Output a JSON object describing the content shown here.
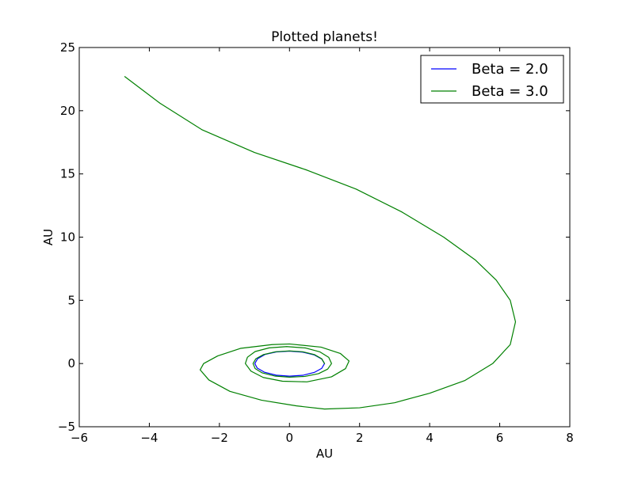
{
  "chart_data": {
    "type": "line",
    "title": "Plotted planets!",
    "xlabel": "AU",
    "ylabel": "AU",
    "xlim": [
      -6,
      8
    ],
    "ylim": [
      -5,
      25
    ],
    "x_ticks": [
      -6,
      -4,
      -2,
      0,
      2,
      4,
      6,
      8
    ],
    "x_tick_labels": [
      "−6",
      "−4",
      "−2",
      "0",
      "2",
      "4",
      "6",
      "8"
    ],
    "y_ticks": [
      -5,
      0,
      5,
      10,
      15,
      20,
      25
    ],
    "y_tick_labels": [
      "−5",
      "0",
      "5",
      "10",
      "15",
      "20",
      "25"
    ],
    "grid": false,
    "legend_position": "top-right",
    "series": [
      {
        "name": "Beta = 2.0",
        "color": "#0000ff",
        "points": [
          [
            1.0,
            0.0
          ],
          [
            0.92,
            0.36
          ],
          [
            0.71,
            0.68
          ],
          [
            0.38,
            0.9
          ],
          [
            0.0,
            0.98
          ],
          [
            -0.38,
            0.92
          ],
          [
            -0.7,
            0.72
          ],
          [
            -0.91,
            0.38
          ],
          [
            -0.99,
            0.0
          ],
          [
            -0.92,
            -0.36
          ],
          [
            -0.72,
            -0.68
          ],
          [
            -0.38,
            -0.92
          ],
          [
            0.0,
            -1.0
          ],
          [
            0.38,
            -0.93
          ],
          [
            0.71,
            -0.7
          ],
          [
            0.92,
            -0.38
          ],
          [
            1.0,
            0.0
          ]
        ]
      },
      {
        "name": "Beta = 3.0",
        "color": "#008000",
        "points": [
          [
            1.0,
            0.0
          ],
          [
            0.92,
            0.38
          ],
          [
            0.71,
            0.71
          ],
          [
            0.38,
            0.93
          ],
          [
            0.0,
            1.0
          ],
          [
            -0.4,
            0.93
          ],
          [
            -0.74,
            0.71
          ],
          [
            -0.96,
            0.38
          ],
          [
            -1.04,
            0.0
          ],
          [
            -0.98,
            -0.4
          ],
          [
            -0.78,
            -0.74
          ],
          [
            -0.42,
            -0.99
          ],
          [
            0.0,
            -1.08
          ],
          [
            0.44,
            -1.02
          ],
          [
            0.83,
            -0.8
          ],
          [
            1.09,
            -0.44
          ],
          [
            1.2,
            0.0
          ],
          [
            1.12,
            0.49
          ],
          [
            0.87,
            0.92
          ],
          [
            0.46,
            1.23
          ],
          [
            -0.08,
            1.34
          ],
          [
            -0.58,
            1.24
          ],
          [
            -0.98,
            0.95
          ],
          [
            -1.2,
            0.5
          ],
          [
            -1.26,
            0.0
          ],
          [
            -1.1,
            -0.6
          ],
          [
            -0.75,
            -1.1
          ],
          [
            -0.2,
            -1.4
          ],
          [
            0.5,
            -1.45
          ],
          [
            1.2,
            -1.05
          ],
          [
            1.6,
            -0.4
          ],
          [
            1.7,
            0.2
          ],
          [
            1.45,
            0.8
          ],
          [
            0.9,
            1.3
          ],
          [
            0.0,
            1.55
          ],
          [
            -0.5,
            1.5
          ],
          [
            -1.4,
            1.2
          ],
          [
            -2.05,
            0.6
          ],
          [
            -2.45,
            0.0
          ],
          [
            -2.55,
            -0.5
          ],
          [
            -2.3,
            -1.3
          ],
          [
            -1.7,
            -2.2
          ],
          [
            -0.8,
            -2.9
          ],
          [
            0.2,
            -3.35
          ],
          [
            1.0,
            -3.6
          ],
          [
            2.0,
            -3.5
          ],
          [
            3.0,
            -3.1
          ],
          [
            4.0,
            -2.35
          ],
          [
            5.0,
            -1.35
          ],
          [
            5.8,
            0.0
          ],
          [
            6.3,
            1.5
          ],
          [
            6.45,
            3.3
          ],
          [
            6.3,
            5.0
          ],
          [
            5.9,
            6.6
          ],
          [
            5.3,
            8.2
          ],
          [
            4.4,
            10.0
          ],
          [
            3.2,
            12.0
          ],
          [
            1.9,
            13.8
          ],
          [
            0.5,
            15.3
          ],
          [
            -1.0,
            16.7
          ],
          [
            -2.5,
            18.5
          ],
          [
            -3.7,
            20.6
          ],
          [
            -4.7,
            22.7
          ]
        ]
      }
    ]
  }
}
